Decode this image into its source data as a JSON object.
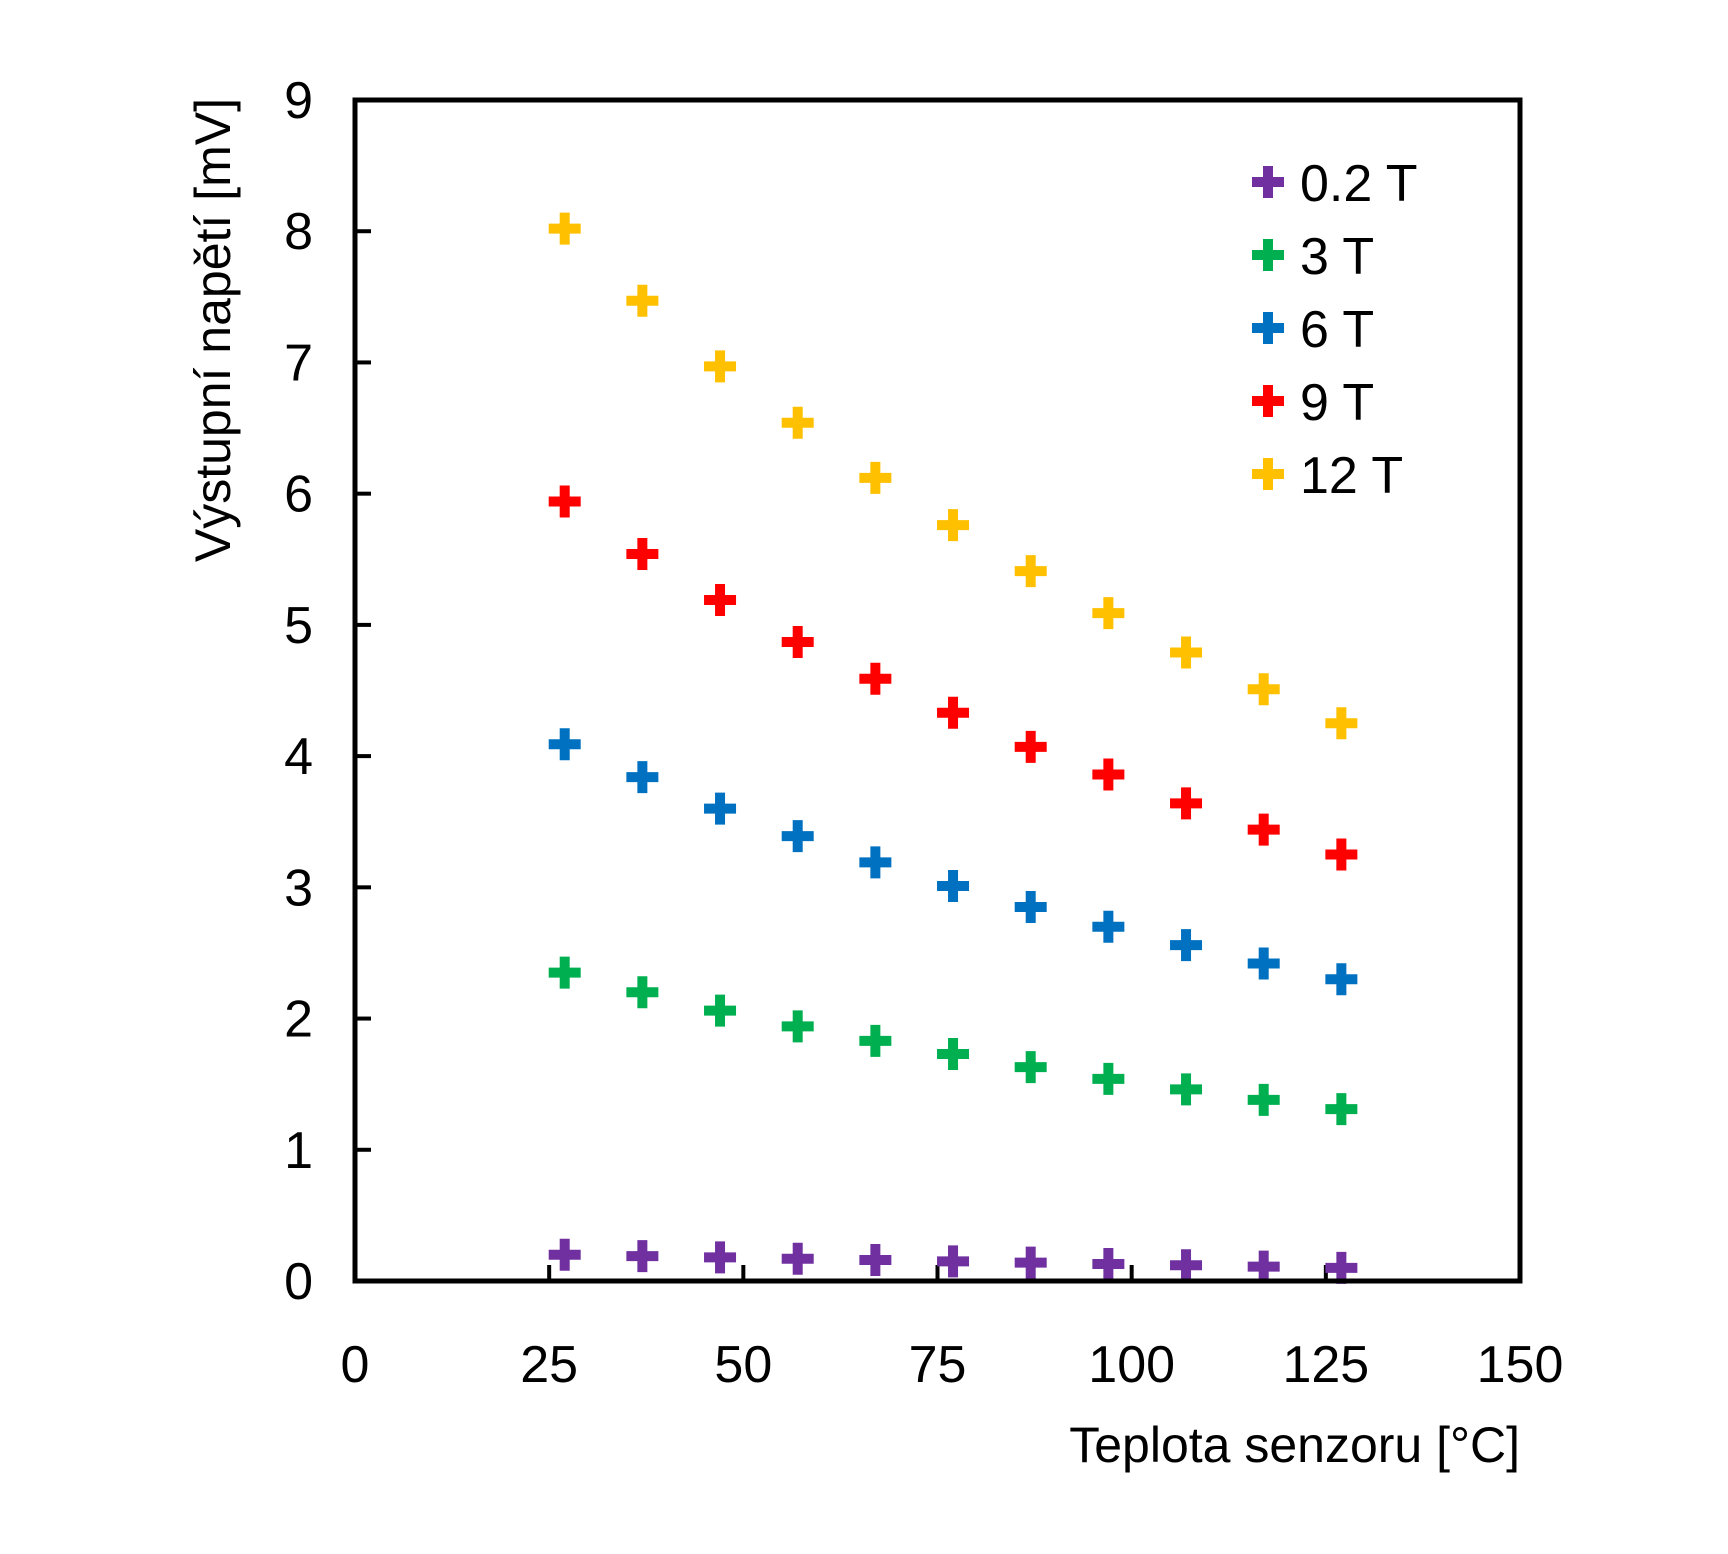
{
  "chart_data": {
    "type": "scatter",
    "title": "",
    "xlabel": "Teplota senzoru [°C]",
    "ylabel": "Výstupní napětí [mV]",
    "xlim": [
      0,
      150
    ],
    "ylim": [
      0,
      9
    ],
    "x_ticks": [
      "0",
      "25",
      "50",
      "75",
      "100",
      "125",
      "150"
    ],
    "y_ticks": [
      "0",
      "1",
      "2",
      "3",
      "4",
      "5",
      "6",
      "7",
      "8",
      "9"
    ],
    "grid": false,
    "legend_position": "top-right",
    "marker": "plus",
    "x": [
      27,
      37,
      47,
      57,
      67,
      77,
      87,
      97,
      107,
      117,
      127
    ],
    "series": [
      {
        "name": "0.2 T",
        "color": "#7030A0",
        "values": [
          0.2,
          0.19,
          0.18,
          0.17,
          0.16,
          0.15,
          0.14,
          0.13,
          0.12,
          0.11,
          0.1
        ]
      },
      {
        "name": "3 T",
        "color": "#00B050",
        "values": [
          2.35,
          2.2,
          2.06,
          1.94,
          1.83,
          1.73,
          1.63,
          1.54,
          1.46,
          1.38,
          1.31
        ]
      },
      {
        "name": "6 T",
        "color": "#0070C0",
        "values": [
          4.09,
          3.84,
          3.6,
          3.39,
          3.19,
          3.01,
          2.85,
          2.7,
          2.56,
          2.42,
          2.3
        ]
      },
      {
        "name": "9 T",
        "color": "#FF0000",
        "values": [
          5.94,
          5.54,
          5.19,
          4.87,
          4.59,
          4.33,
          4.07,
          3.86,
          3.64,
          3.44,
          3.25
        ]
      },
      {
        "name": "12 T",
        "color": "#FFC000",
        "values": [
          8.02,
          7.47,
          6.97,
          6.54,
          6.12,
          5.76,
          5.41,
          5.09,
          4.79,
          4.51,
          4.25
        ]
      }
    ]
  }
}
